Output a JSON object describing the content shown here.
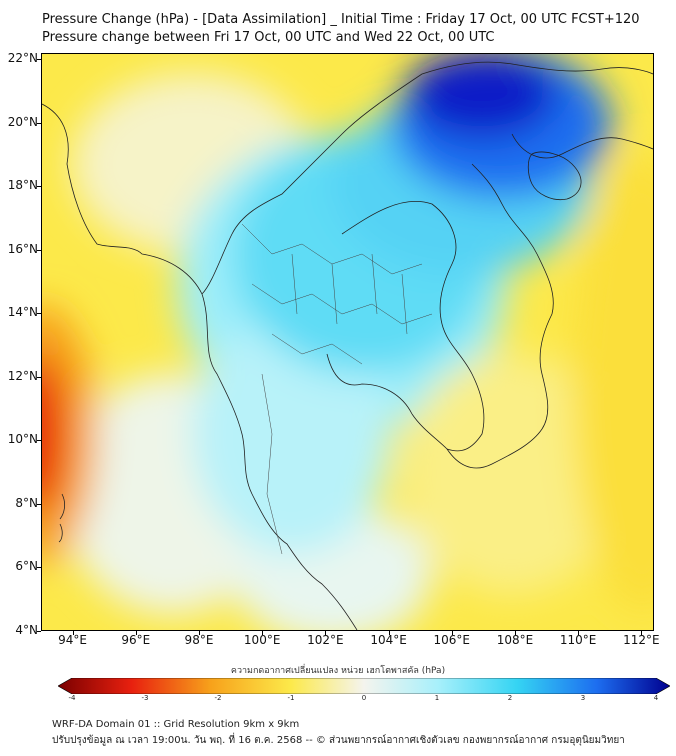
{
  "header": {
    "title_line1": "Pressure Change (hPa) - [Data Assimilation] _ Initial Time : Friday 17 Oct, 00 UTC FCST+120",
    "title_line2": "Pressure change between Fri 17 Oct, 00 UTC and Wed 22 Oct, 00 UTC"
  },
  "map": {
    "lat_labels": [
      "22°N",
      "20°N",
      "18°N",
      "16°N",
      "14°N",
      "12°N",
      "10°N",
      "8°N",
      "6°N",
      "4°N"
    ],
    "lon_labels": [
      "94°E",
      "96°E",
      "98°E",
      "100°E",
      "102°E",
      "104°E",
      "106°E",
      "108°E",
      "110°E",
      "112°E"
    ],
    "lat_range": [
      4,
      22.2
    ],
    "lon_range": [
      93,
      112.4
    ]
  },
  "colorbar": {
    "title": "ความกดอากาศเปลี่ยนแปลง หน่วย เฮกโตพาสคัล (hPa)",
    "ticks": [
      "-4",
      "-3",
      "-2",
      "-1",
      "0",
      "1",
      "2",
      "3",
      "4"
    ],
    "range": [
      -4,
      4
    ],
    "colors": {
      "dark_red": "#7a0000",
      "red": "#e8200f",
      "orange": "#f7a21b",
      "yellow": "#fce94a",
      "neutral": "#f4f4ee",
      "light_cyan": "#a8f0fb",
      "cyan": "#35d4f3",
      "blue": "#1d6ef0",
      "dark_blue": "#00008f"
    }
  },
  "footer": {
    "line1": "WRF-DA Domain 01 :: Grid Resolution 9km x 9km",
    "line2": "ปรับปรุงข้อมูล ณ เวลา 19:00น. วัน พฤ. ที่ 16 ต.ค. 2568 -- © ส่วนพยากรณ์อากาศเชิงตัวเลข กองพยากรณ์อากาศ กรมอุตุนิยมวิทยา"
  }
}
